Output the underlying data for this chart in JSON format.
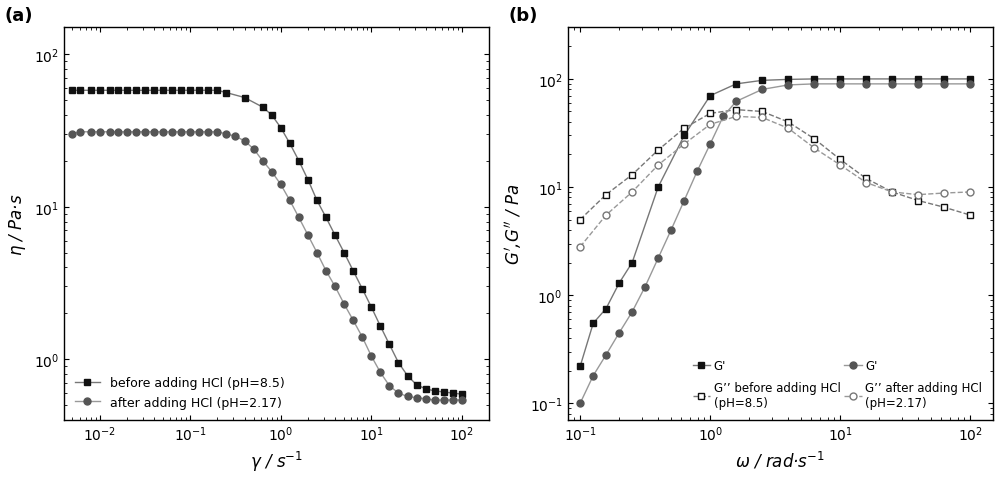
{
  "panel_a": {
    "before_x": [
      0.005,
      0.006,
      0.008,
      0.01,
      0.013,
      0.016,
      0.02,
      0.025,
      0.032,
      0.04,
      0.05,
      0.063,
      0.079,
      0.1,
      0.126,
      0.158,
      0.2,
      0.251,
      0.398,
      0.631,
      0.794,
      1.0,
      1.259,
      1.585,
      2.0,
      2.512,
      3.162,
      3.981,
      5.012,
      6.31,
      7.943,
      10.0,
      12.59,
      15.85,
      19.95,
      25.12,
      31.62,
      39.81,
      50.12,
      63.1,
      79.43,
      100.0
    ],
    "before_y": [
      58,
      58,
      58,
      58,
      58,
      58,
      58,
      58,
      58,
      58,
      58,
      58,
      58,
      58,
      58,
      58,
      58,
      56,
      52,
      45,
      40,
      33,
      26,
      20,
      15,
      11,
      8.5,
      6.5,
      5.0,
      3.8,
      2.9,
      2.2,
      1.65,
      1.25,
      0.95,
      0.78,
      0.68,
      0.64,
      0.62,
      0.61,
      0.6,
      0.59
    ],
    "after_x": [
      0.005,
      0.006,
      0.008,
      0.01,
      0.013,
      0.016,
      0.02,
      0.025,
      0.032,
      0.04,
      0.05,
      0.063,
      0.079,
      0.1,
      0.126,
      0.158,
      0.2,
      0.251,
      0.316,
      0.398,
      0.5,
      0.631,
      0.794,
      1.0,
      1.259,
      1.585,
      2.0,
      2.512,
      3.162,
      3.981,
      5.012,
      6.31,
      7.943,
      10.0,
      12.59,
      15.85,
      19.95,
      25.12,
      31.62,
      39.81,
      50.12,
      63.1,
      79.43,
      100.0
    ],
    "after_y": [
      30,
      31,
      31,
      31,
      31,
      31,
      31,
      31,
      31,
      31,
      31,
      31,
      31,
      31,
      31,
      31,
      31,
      30,
      29,
      27,
      24,
      20,
      17,
      14,
      11,
      8.5,
      6.5,
      5.0,
      3.8,
      3.0,
      2.3,
      1.8,
      1.4,
      1.05,
      0.82,
      0.67,
      0.6,
      0.57,
      0.56,
      0.55,
      0.54,
      0.54,
      0.54,
      0.54
    ],
    "xlabel": "$\\gamma$ / s$^{-1}$",
    "ylabel": "$\\eta$ / Pa·s",
    "xlim": [
      0.004,
      200
    ],
    "ylim": [
      0.4,
      150
    ],
    "legend_before": "before adding HCl (pH=8.5)",
    "legend_after": "after adding HCl (pH=2.17)"
  },
  "panel_b": {
    "G_prime_before_x": [
      0.1,
      0.126,
      0.158,
      0.2,
      0.251,
      0.398,
      0.631,
      1.0,
      1.585,
      2.512,
      3.981,
      6.31,
      10.0,
      15.85,
      25.12,
      39.81,
      63.1,
      100.0
    ],
    "G_prime_before_y": [
      0.22,
      0.55,
      0.75,
      1.3,
      2.0,
      10,
      30,
      70,
      90,
      97,
      99,
      100,
      100,
      100,
      100,
      100,
      100,
      100
    ],
    "G_dprime_before_x": [
      0.1,
      0.158,
      0.251,
      0.398,
      0.631,
      1.0,
      1.585,
      2.512,
      3.981,
      6.31,
      10.0,
      15.85,
      25.12,
      39.81,
      63.1,
      100.0
    ],
    "G_dprime_before_y": [
      5.0,
      8.5,
      13,
      22,
      35,
      48,
      52,
      50,
      40,
      28,
      18,
      12,
      9,
      7.5,
      6.5,
      5.5
    ],
    "G_prime_after_x": [
      0.1,
      0.126,
      0.158,
      0.2,
      0.251,
      0.316,
      0.398,
      0.5,
      0.631,
      0.794,
      1.0,
      1.259,
      1.585,
      2.512,
      3.981,
      6.31,
      10.0,
      15.85,
      25.12,
      39.81,
      63.1,
      100.0
    ],
    "G_prime_after_y": [
      0.1,
      0.18,
      0.28,
      0.45,
      0.7,
      1.2,
      2.2,
      4.0,
      7.5,
      14,
      25,
      45,
      62,
      80,
      88,
      90,
      90,
      90,
      90,
      90,
      90,
      90
    ],
    "G_dprime_after_x": [
      0.1,
      0.158,
      0.251,
      0.398,
      0.631,
      1.0,
      1.585,
      2.512,
      3.981,
      6.31,
      10.0,
      15.85,
      25.12,
      39.81,
      63.1,
      100.0
    ],
    "G_dprime_after_y": [
      2.8,
      5.5,
      9,
      16,
      25,
      38,
      45,
      44,
      35,
      23,
      16,
      11,
      9.0,
      8.5,
      8.8,
      9.0
    ],
    "xlabel": "$\\omega$ / rad·s$^{-1}$",
    "ylabel": "$G'$,$G''$ / Pa",
    "xlim": [
      0.08,
      150
    ],
    "ylim": [
      0.07,
      300
    ]
  },
  "lc_before": "#777777",
  "lc_after": "#999999",
  "mc_before_filled": "#111111",
  "mc_after_filled": "#555555",
  "mc_before_open": "#111111",
  "mc_after_open": "#777777"
}
